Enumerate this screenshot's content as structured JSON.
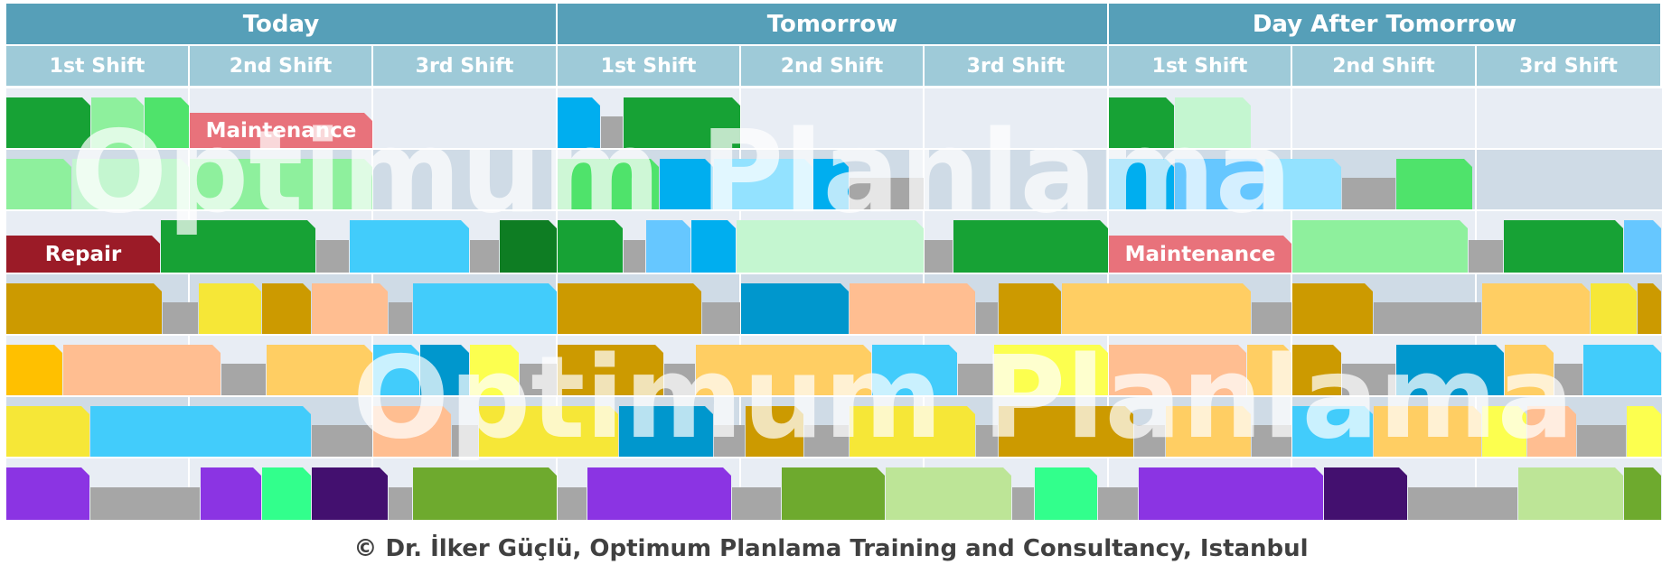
{
  "days": [
    "Today",
    "Tomorrow",
    "Day After Tomorrow"
  ],
  "shifts": [
    "1st Shift",
    "2nd Shift",
    "3rd Shift"
  ],
  "labels": {
    "maintenance": "Maintenance",
    "repair": "Repair"
  },
  "watermark": "Optimum Planlama",
  "footer": "© Dr. İlker Güçlü, Optimum Planlama Training and Consultancy, Istanbul",
  "colors": {
    "header_day": "#569fb8",
    "header_shift": "#9ecad8",
    "band_light": "#e8edf4",
    "band_dark": "#cfdbe6",
    "idle_gray": "#a6a6a6",
    "maintenance": "#e8727b",
    "repair": "#9b1b27"
  }
}
